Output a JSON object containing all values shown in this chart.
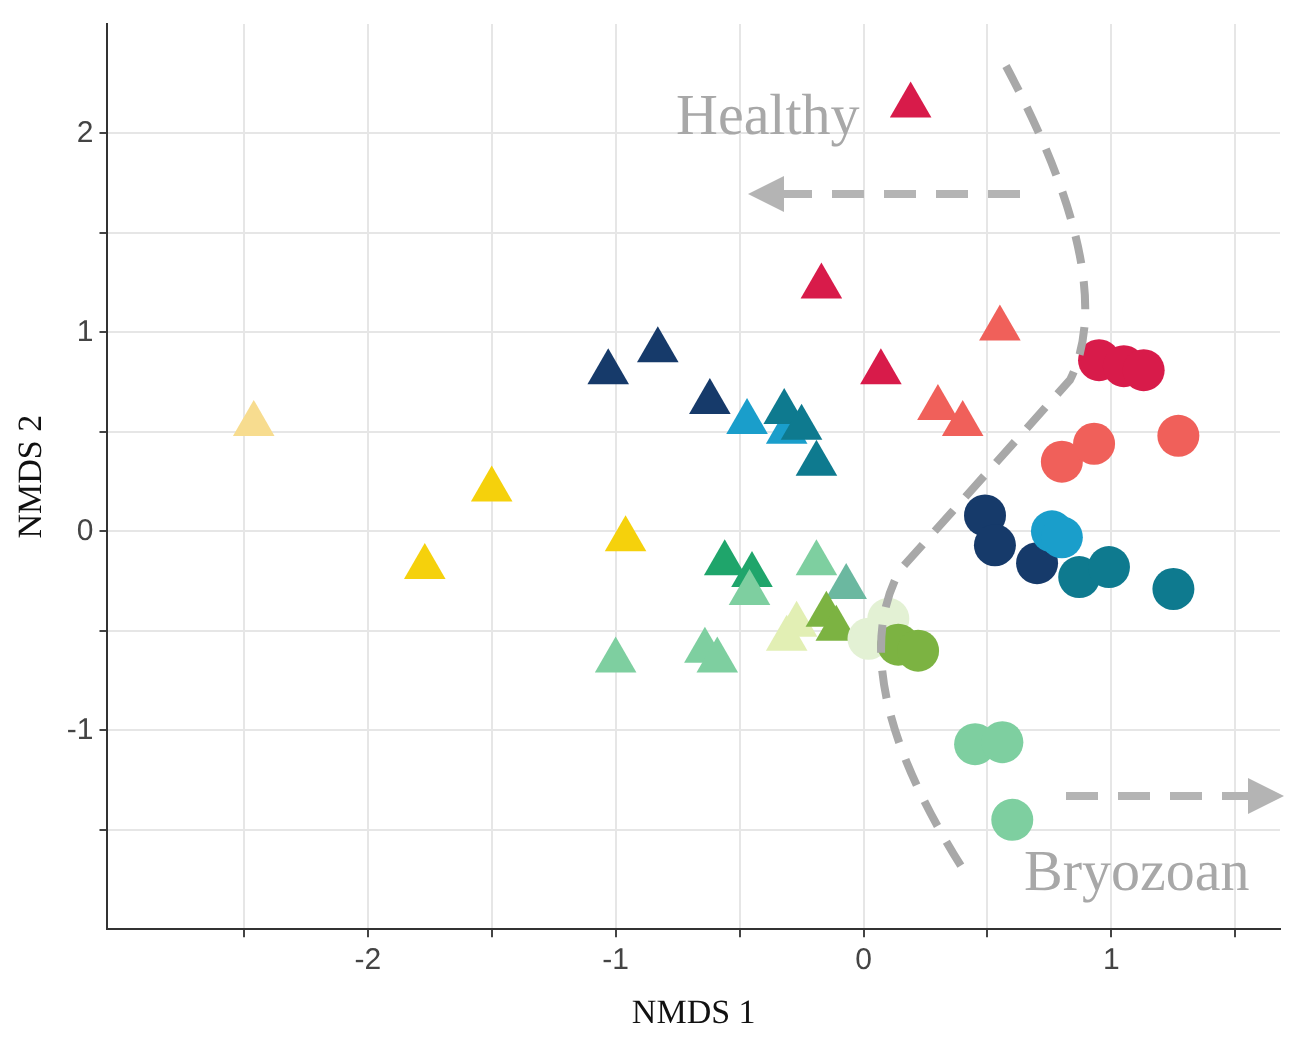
{
  "chart_data": {
    "type": "scatter",
    "xlabel": "NMDS 1",
    "ylabel": "NMDS 2",
    "xlim": [
      -3.05,
      1.68
    ],
    "ylim": [
      -2.0,
      2.55
    ],
    "xticks": [
      {
        "value": -2.5,
        "label": null
      },
      {
        "value": -2,
        "label": "-2"
      },
      {
        "value": -1.5,
        "label": null
      },
      {
        "value": -1,
        "label": "-1"
      },
      {
        "value": -0.5,
        "label": null
      },
      0,
      {
        "value": 0.5,
        "label": null
      },
      1,
      {
        "value": 1.5,
        "label": null
      }
    ],
    "yticks": [
      {
        "value": -1.5,
        "label": null
      },
      {
        "value": -1,
        "label": "-1"
      },
      {
        "value": -0.5,
        "label": null
      },
      0,
      {
        "value": 0.5,
        "label": null
      },
      1,
      {
        "value": 1.5,
        "label": null
      },
      2
    ],
    "grid": true,
    "legend": false,
    "annotations": [
      "Healthy",
      "Bryozoan"
    ],
    "series": [
      {
        "color": "#d81b4a",
        "marker": "triangle",
        "x": [
          0.19,
          -0.17,
          0.07
        ],
        "values": [
          2.14,
          1.23,
          0.8
        ]
      },
      {
        "color": "#f0605a",
        "marker": "triangle",
        "x": [
          0.55,
          0.3,
          0.4
        ],
        "values": [
          1.02,
          0.62,
          0.54
        ]
      },
      {
        "color": "#163a6a",
        "marker": "triangle",
        "x": [
          -1.03,
          -0.83,
          -0.62
        ],
        "values": [
          0.8,
          0.91,
          0.65
        ]
      },
      {
        "color": "#1a9ecb",
        "marker": "triangle",
        "x": [
          -0.47,
          -0.31
        ],
        "values": [
          0.55,
          0.5
        ]
      },
      {
        "color": "#0e7a8f",
        "marker": "triangle",
        "x": [
          -0.32,
          -0.25,
          -0.19
        ],
        "values": [
          0.6,
          0.52,
          0.34
        ]
      },
      {
        "color": "#f5d10c",
        "marker": "triangle",
        "x": [
          -1.77,
          -1.5,
          -0.96
        ],
        "values": [
          -0.18,
          0.21,
          -0.04
        ]
      },
      {
        "color": "#f7dc8f",
        "marker": "triangle",
        "x": [
          -2.46
        ],
        "values": [
          0.54
        ]
      },
      {
        "color": "#1fa56b",
        "marker": "triangle",
        "x": [
          -0.56,
          -0.45
        ],
        "values": [
          -0.16,
          -0.22
        ]
      },
      {
        "color": "#7ecfa0",
        "marker": "triangle",
        "x": [
          -1.0,
          -0.64,
          -0.59,
          -0.46,
          -0.19
        ],
        "values": [
          -0.65,
          -0.6,
          -0.65,
          -0.31,
          -0.16
        ]
      },
      {
        "color": "#6bb8a0",
        "marker": "triangle",
        "x": [
          -0.07
        ],
        "values": [
          -0.28
        ]
      },
      {
        "color": "#e2efb4",
        "marker": "triangle",
        "x": [
          -0.31,
          -0.27
        ],
        "values": [
          -0.54,
          -0.47
        ]
      },
      {
        "color": "#7cb342",
        "marker": "triangle",
        "x": [
          -0.15,
          -0.11
        ],
        "values": [
          -0.42,
          -0.49
        ]
      },
      {
        "color": "#e3f1d4",
        "marker": "circle",
        "x": [
          0.02,
          0.1
        ],
        "values": [
          -0.54,
          -0.44
        ]
      },
      {
        "color": "#7cb342",
        "marker": "circle",
        "x": [
          0.14,
          0.22
        ],
        "values": [
          -0.57,
          -0.6
        ]
      },
      {
        "color": "#d81b4a",
        "marker": "circle",
        "x": [
          0.95,
          1.05,
          1.13
        ],
        "values": [
          0.86,
          0.83,
          0.81
        ]
      },
      {
        "color": "#f0605a",
        "marker": "circle",
        "x": [
          0.8,
          0.93,
          1.27
        ],
        "values": [
          0.35,
          0.44,
          0.48
        ]
      },
      {
        "color": "#163a6a",
        "marker": "circle",
        "x": [
          0.49,
          0.53,
          0.7
        ],
        "values": [
          0.08,
          -0.07,
          -0.16
        ]
      },
      {
        "color": "#1a9ecb",
        "marker": "circle",
        "x": [
          0.76,
          0.8
        ],
        "values": [
          0.0,
          -0.03
        ]
      },
      {
        "color": "#0e7a8f",
        "marker": "circle",
        "x": [
          0.87,
          0.99,
          1.25
        ],
        "values": [
          -0.23,
          -0.18,
          -0.29
        ]
      },
      {
        "color": "#7ecfa0",
        "marker": "circle",
        "x": [
          0.45,
          0.56,
          0.6
        ],
        "values": [
          -1.07,
          -1.06,
          -1.45
        ]
      }
    ]
  }
}
